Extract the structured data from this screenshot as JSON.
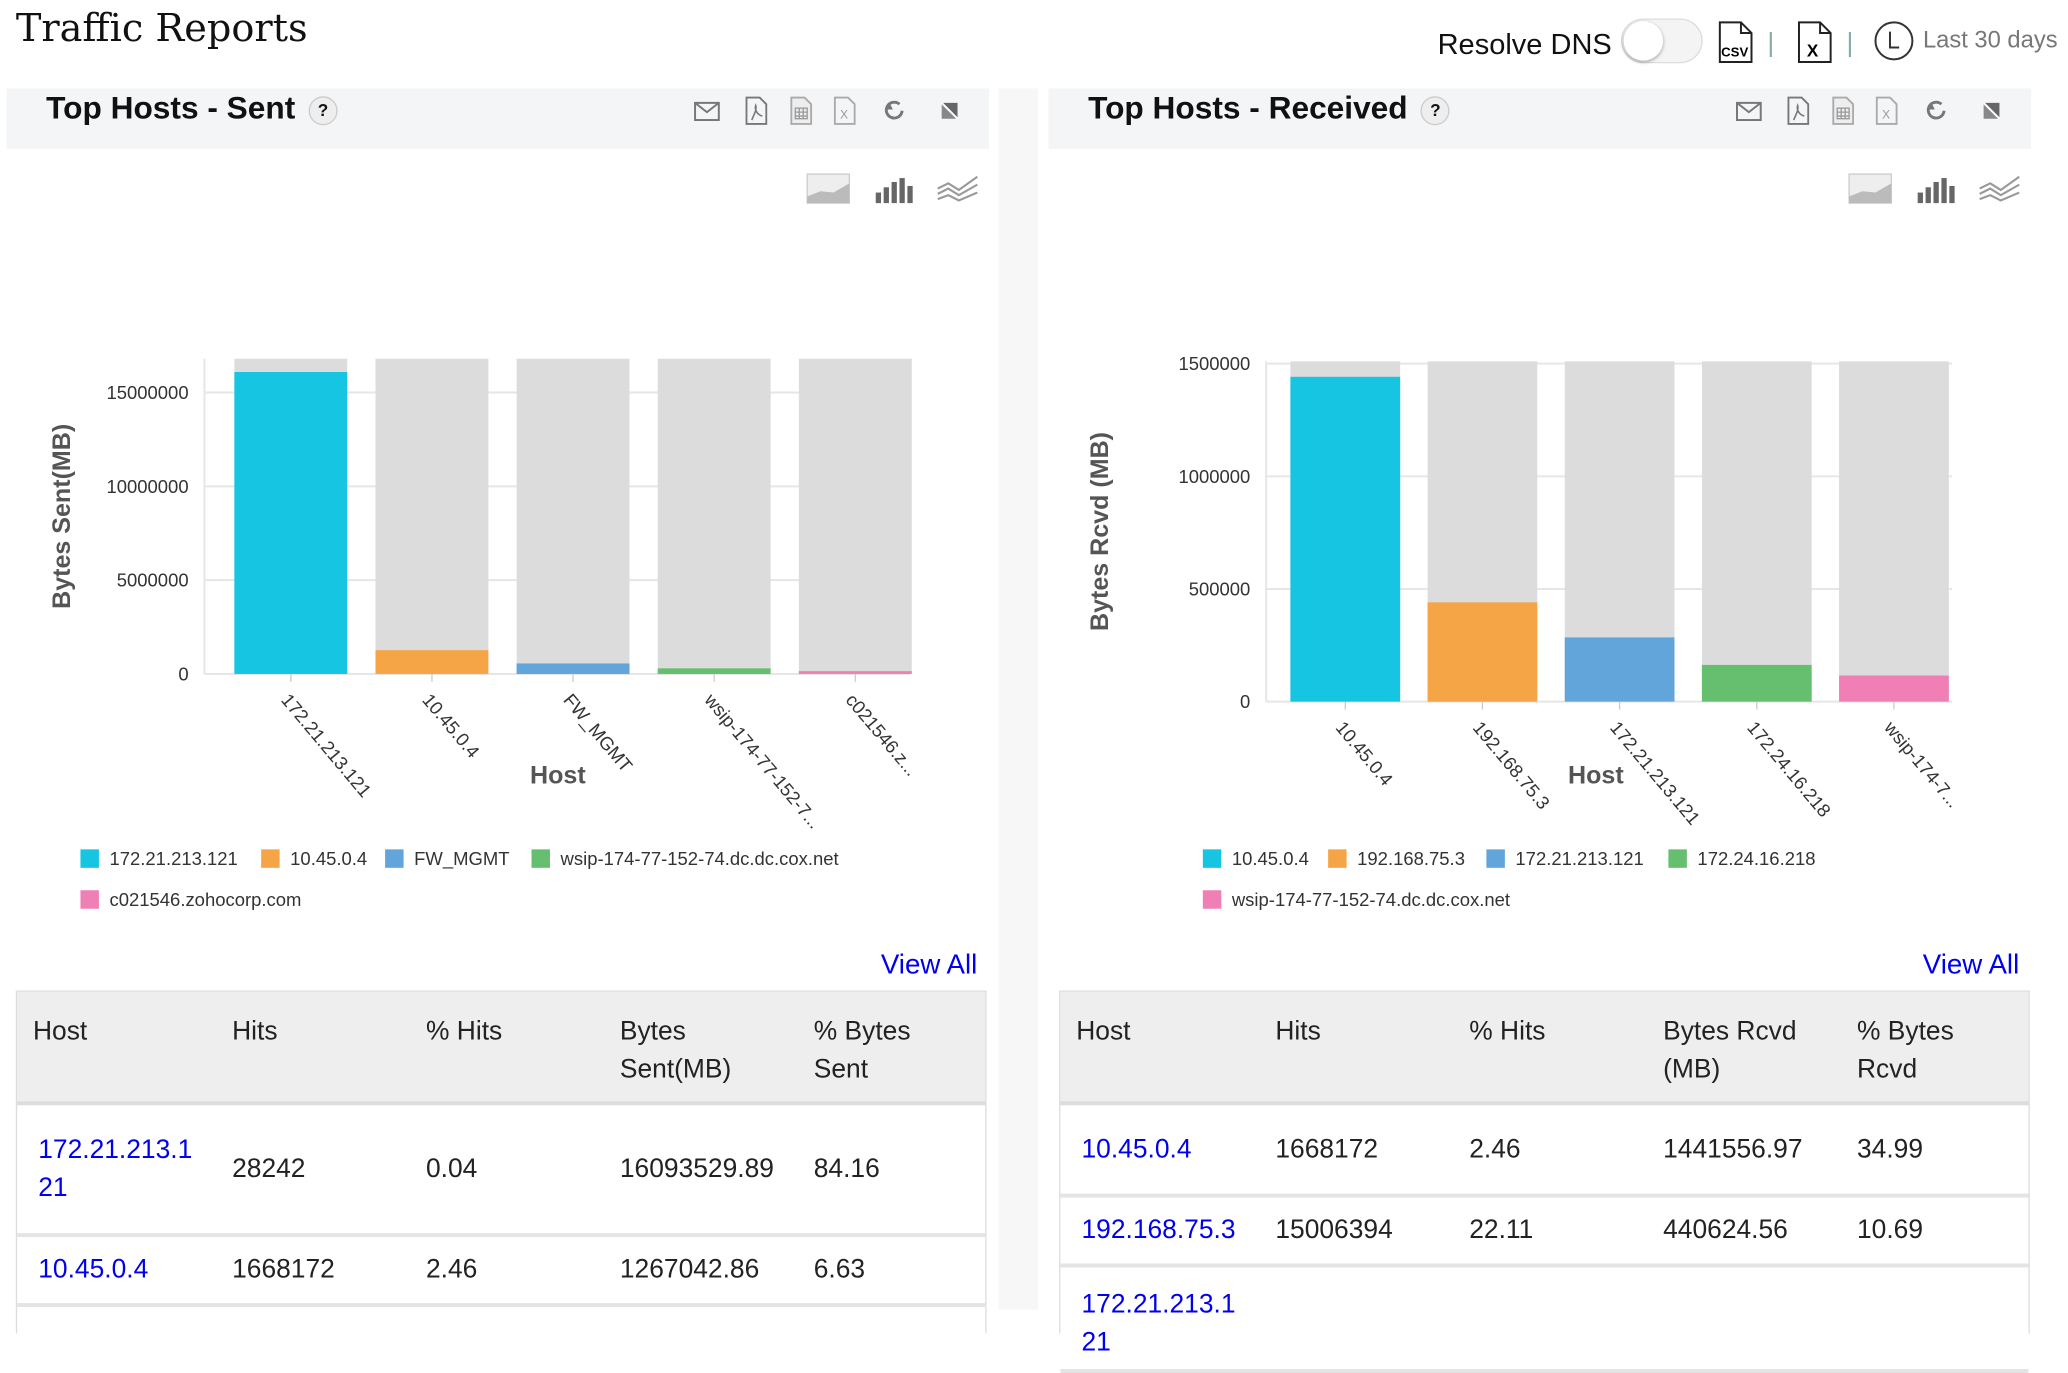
{
  "page": {
    "title": "Traffic Reports"
  },
  "header": {
    "resolve_dns_label": "Resolve DNS",
    "resolve_dns_on": false,
    "separator": "|",
    "time_range": "Last 30 days",
    "icons": [
      "csv-export-icon",
      "excel-export-icon",
      "clock-icon"
    ]
  },
  "panel_icons": [
    "mail-icon",
    "pdf-icon",
    "csv-icon",
    "excel-icon",
    "refresh-icon",
    "expand-icon"
  ],
  "chart_type_icons": [
    "area-chart-icon",
    "bar-chart-icon",
    "line-chart-icon"
  ],
  "colors": {
    "series": [
      "#16c5e1",
      "#f5a545",
      "#62a5da",
      "#66bf6e",
      "#f07fb5"
    ],
    "track": "#dcdcdc",
    "link": "#0000ee"
  },
  "panels": [
    {
      "title": "Top Hosts - Sent",
      "help": "?",
      "view_all": "View All",
      "chart_data": {
        "type": "bar",
        "xlabel": "Host",
        "ylabel": "Bytes Sent(MB)",
        "ylim": [
          0,
          16800000
        ],
        "yticks": [
          0,
          5000000,
          10000000,
          15000000
        ],
        "ytick_labels": [
          "0",
          "5000000",
          "10000000",
          "15000000"
        ],
        "categories": [
          "172.21.213.121",
          "10.45.0.4",
          "FW_MGMT",
          "wsip-174-77-152-7...",
          "c021546.z..."
        ],
        "values": [
          16093529.89,
          1267042.86,
          560000,
          300000,
          150000
        ],
        "legend": [
          "172.21.213.121",
          "10.45.0.4",
          "FW_MGMT",
          "wsip-174-77-152-74.dc.dc.cox.net",
          "c021546.zohocorp.com"
        ],
        "legend_position": "bottom",
        "grid": true
      },
      "table": {
        "headers": [
          "Host",
          "Hits",
          "% Hits",
          "Bytes Sent(MB)",
          "% Bytes Sent"
        ],
        "rows": [
          [
            "172.21.213.121",
            "28242",
            "0.04",
            "16093529.89",
            "84.16"
          ],
          [
            "10.45.0.4",
            "1668172",
            "2.46",
            "1267042.86",
            "6.63"
          ]
        ]
      }
    },
    {
      "title": "Top Hosts - Received",
      "help": "?",
      "view_all": "View All",
      "chart_data": {
        "type": "bar",
        "xlabel": "Host",
        "ylabel": "Bytes Rcvd (MB)",
        "ylim": [
          0,
          1510000
        ],
        "yticks": [
          0,
          500000,
          1000000,
          1500000
        ],
        "ytick_labels": [
          "0",
          "500000",
          "1000000",
          "1500000"
        ],
        "categories": [
          "10.45.0.4",
          "192.168.75.3",
          "172.21.213.121",
          "172.24.16.218",
          "wsip-174-7..."
        ],
        "values": [
          1441556.97,
          440624.56,
          285000,
          163000,
          116000
        ],
        "legend": [
          "10.45.0.4",
          "192.168.75.3",
          "172.21.213.121",
          "172.24.16.218",
          "wsip-174-77-152-74.dc.dc.cox.net"
        ],
        "legend_position": "bottom",
        "grid": true
      },
      "table": {
        "headers": [
          "Host",
          "Hits",
          "% Hits",
          "Bytes Rcvd (MB)",
          "% Bytes Rcvd"
        ],
        "rows": [
          [
            "10.45.0.4",
            "1668172",
            "2.46",
            "1441556.97",
            "34.99"
          ],
          [
            "192.168.75.3",
            "15006394",
            "22.11",
            "440624.56",
            "10.69"
          ],
          [
            "172.21.213.121",
            "",
            "",
            "",
            ""
          ]
        ]
      }
    }
  ]
}
